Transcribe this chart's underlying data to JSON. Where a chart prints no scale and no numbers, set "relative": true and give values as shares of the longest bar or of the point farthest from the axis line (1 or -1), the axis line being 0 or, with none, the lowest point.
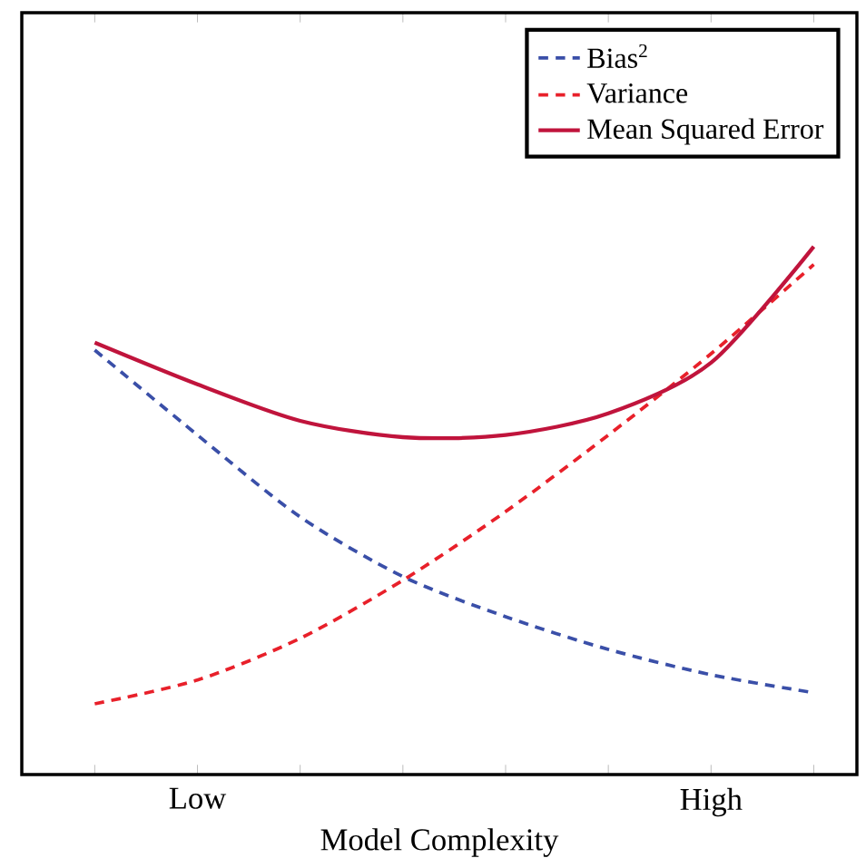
{
  "chart_data": {
    "type": "line",
    "relative": true,
    "xlabel": "Model Complexity",
    "categories": [
      null,
      "Low",
      null,
      null,
      null,
      null,
      "High",
      null
    ],
    "series": [
      {
        "name": "Bias$^{2}$",
        "color": "#3a4fa8",
        "line_style": "dashed",
        "values": [
          0.804,
          0.643,
          0.488,
          0.375,
          0.299,
          0.237,
          0.189,
          0.155
        ]
      },
      {
        "name": "Variance",
        "color": "#e8202a",
        "line_style": "dashed",
        "values": [
          0.134,
          0.179,
          0.258,
          0.368,
          0.498,
          0.643,
          0.797,
          0.966
        ]
      },
      {
        "name": "Mean  Squared Error",
        "color": "#c0143c",
        "line_style": "solid",
        "values": [
          0.818,
          0.739,
          0.67,
          0.639,
          0.643,
          0.684,
          0.78,
          1.0
        ]
      }
    ],
    "legend": "top right",
    "marker": "none",
    "grid": false
  }
}
